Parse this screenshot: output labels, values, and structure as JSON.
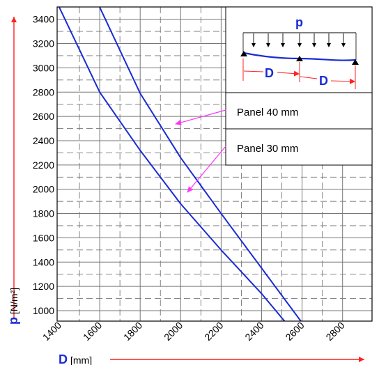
{
  "chart_data": {
    "type": "line",
    "xlabel": {
      "symbol": "D",
      "unit": "[mm]"
    },
    "ylabel": {
      "symbol": "p",
      "unit": "[N/m²]"
    },
    "xlim": [
      1400,
      2900
    ],
    "ylim": [
      900,
      3500
    ],
    "x_ticks": [
      "1400",
      "1600",
      "1800",
      "2000",
      "2200",
      "2400",
      "2600",
      "2800"
    ],
    "y_ticks": [
      "1000",
      "1200",
      "1400",
      "1600",
      "1800",
      "2000",
      "2200",
      "2400",
      "2600",
      "2800",
      "3000",
      "3200",
      "3400"
    ],
    "series": [
      {
        "name": "Panel 40 mm",
        "color": "#1a2bd6",
        "x": [
          1600,
          1800,
          2000,
          2200,
          2400,
          2600
        ],
        "y": [
          3500,
          2790,
          2260,
          1800,
          1350,
          900
        ]
      },
      {
        "name": "Panel 30 mm",
        "color": "#1a2bd6",
        "x": [
          1400,
          1600,
          1800,
          2000,
          2200,
          2400,
          2520
        ],
        "y": [
          3500,
          2800,
          2320,
          1880,
          1500,
          1140,
          900
        ]
      }
    ],
    "legend": [
      "Panel 40 mm",
      "Panel 30 mm"
    ],
    "diagram": {
      "load_label": "p",
      "span_label": "D"
    },
    "grid": true,
    "colors": {
      "axis_arrow": "#ff2020",
      "curve": "#1a2bd6",
      "leader": "#ff33ff",
      "grid": "#777777"
    }
  }
}
